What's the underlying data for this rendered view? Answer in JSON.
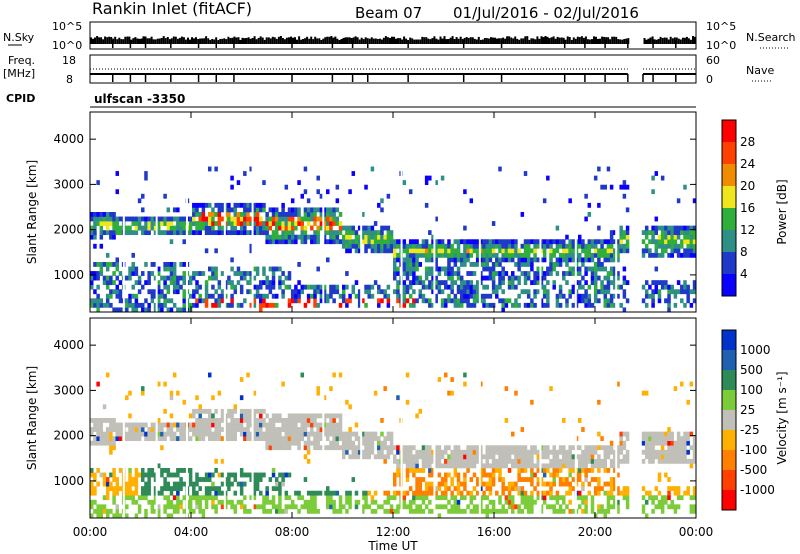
{
  "header": {
    "title": "Rankin Inlet (fitACF)",
    "beam": "Beam 07",
    "date_range": "01/Jul/2016 - 02/Jul/2016"
  },
  "strip": {
    "nsky_label": "N.Sky",
    "nsearch_label": "N.Search",
    "freq_label_1": "Freq.",
    "freq_label_2": "[MHz]",
    "nave_label": "Nave",
    "cpid_label": "CPID",
    "noise_ticks_left": [
      "10^5",
      "10^0"
    ],
    "noise_ticks_right": [
      "10^5",
      "10^0"
    ],
    "freq_ticks": [
      "18",
      "8"
    ],
    "nave_ticks": [
      "60",
      "0"
    ],
    "cpid_text": "ulfscan -3350"
  },
  "colors": {
    "power_scale": [
      "#0a00ff",
      "#1f39c8",
      "#2e8f86",
      "#2fae3c",
      "#f0e61e",
      "#f08c00",
      "#ff4000",
      "#ff0000"
    ],
    "velocity_scale": [
      "#ff0000",
      "#ff4000",
      "#ff7f00",
      "#ffb000",
      "#c0c0b8",
      "#7ccc3a",
      "#2e8b57",
      "#2060b0",
      "#0033cc"
    ]
  },
  "chart_data": [
    {
      "type": "heatmap",
      "parameter": "Power",
      "xlabel": "",
      "ylabel": "Slant Range [km]",
      "x_ticks": [
        "00:00",
        "04:00",
        "08:00",
        "12:00",
        "16:00",
        "20:00",
        "00:00"
      ],
      "xlim_hours": [
        0,
        24
      ],
      "y_ticks": [
        1000,
        2000,
        3000,
        4000
      ],
      "ylim": [
        180,
        4600
      ],
      "colorbar_label": "Power [dB]",
      "colorbar_ticks": [
        4,
        8,
        12,
        16,
        20,
        24,
        28
      ],
      "colorbar_range": [
        0,
        32
      ]
    },
    {
      "type": "heatmap",
      "parameter": "Velocity",
      "xlabel": "Time UT",
      "ylabel": "Slant Range [km]",
      "x_ticks": [
        "00:00",
        "04:00",
        "08:00",
        "12:00",
        "16:00",
        "20:00",
        "00:00"
      ],
      "xlim_hours": [
        0,
        24
      ],
      "y_ticks": [
        1000,
        2000,
        3000,
        4000
      ],
      "ylim": [
        180,
        4600
      ],
      "colorbar_label": "Velocity [m s⁻¹]",
      "colorbar_ticks": [
        "1000",
        "500",
        "100",
        "25",
        "-25",
        "-100",
        "-500",
        "-1000"
      ]
    }
  ]
}
